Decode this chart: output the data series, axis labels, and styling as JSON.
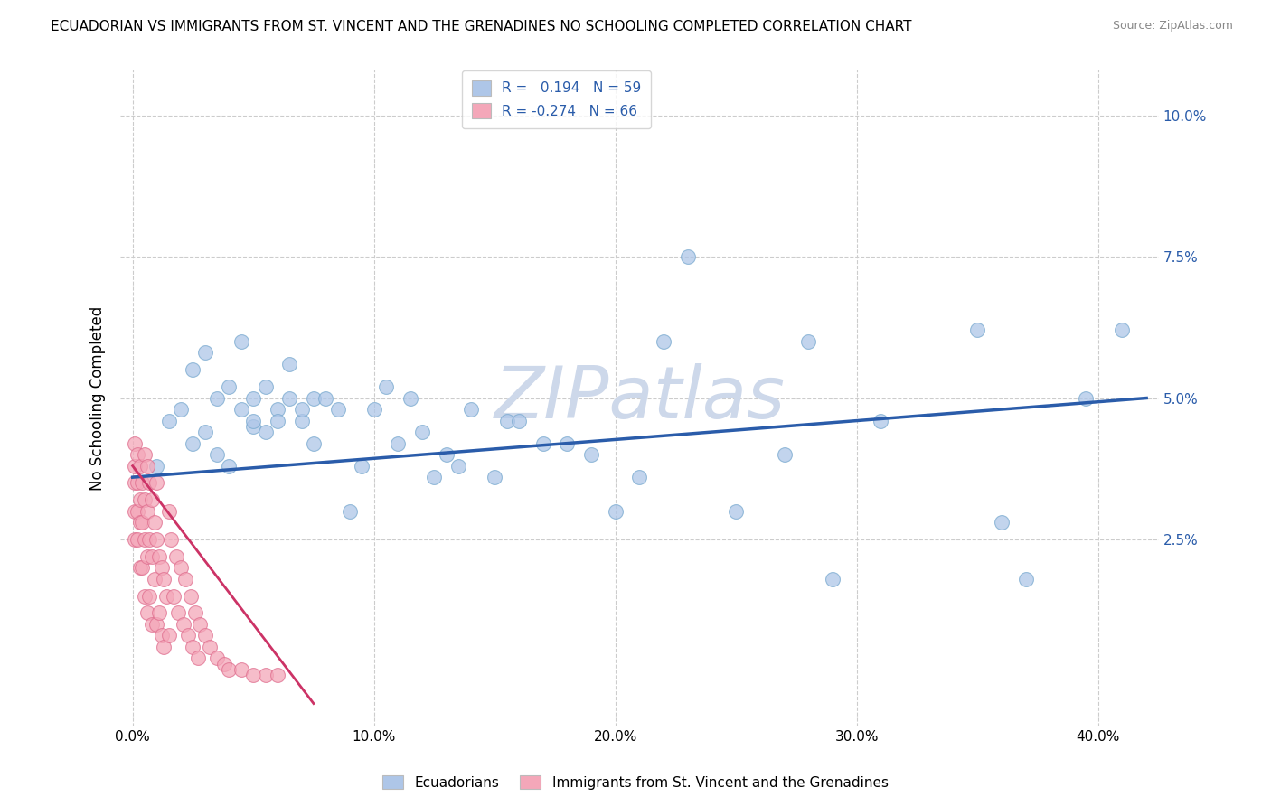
{
  "title": "ECUADORIAN VS IMMIGRANTS FROM ST. VINCENT AND THE GRENADINES NO SCHOOLING COMPLETED CORRELATION CHART",
  "source": "Source: ZipAtlas.com",
  "ylabel": "No Schooling Completed",
  "watermark": "ZIPatlas",
  "legend_blue_r": "0.194",
  "legend_blue_n": "59",
  "legend_pink_r": "-0.274",
  "legend_pink_n": "66",
  "legend_label_blue": "Ecuadorians",
  "legend_label_pink": "Immigrants from St. Vincent and the Grenadines",
  "x_ticks": [
    0.0,
    0.1,
    0.2,
    0.3,
    0.4
  ],
  "x_tick_labels": [
    "0.0%",
    "10.0%",
    "20.0%",
    "30.0%",
    "40.0%"
  ],
  "y_ticks": [
    0.0,
    0.025,
    0.05,
    0.075,
    0.1
  ],
  "y_tick_labels": [
    "",
    "2.5%",
    "5.0%",
    "7.5%",
    "10.0%"
  ],
  "xlim": [
    -0.005,
    0.425
  ],
  "ylim": [
    -0.008,
    0.108
  ],
  "blue_scatter_x": [
    0.01,
    0.015,
    0.02,
    0.025,
    0.025,
    0.03,
    0.03,
    0.035,
    0.035,
    0.04,
    0.04,
    0.045,
    0.045,
    0.05,
    0.05,
    0.05,
    0.055,
    0.055,
    0.06,
    0.06,
    0.065,
    0.065,
    0.07,
    0.07,
    0.075,
    0.075,
    0.08,
    0.085,
    0.09,
    0.095,
    0.1,
    0.105,
    0.11,
    0.115,
    0.12,
    0.125,
    0.13,
    0.135,
    0.14,
    0.15,
    0.155,
    0.16,
    0.17,
    0.18,
    0.19,
    0.2,
    0.21,
    0.22,
    0.23,
    0.25,
    0.27,
    0.29,
    0.31,
    0.35,
    0.36,
    0.37,
    0.395,
    0.41,
    0.28
  ],
  "blue_scatter_y": [
    0.038,
    0.046,
    0.048,
    0.042,
    0.055,
    0.044,
    0.058,
    0.04,
    0.05,
    0.052,
    0.038,
    0.06,
    0.048,
    0.045,
    0.05,
    0.046,
    0.052,
    0.044,
    0.048,
    0.046,
    0.05,
    0.056,
    0.046,
    0.048,
    0.042,
    0.05,
    0.05,
    0.048,
    0.03,
    0.038,
    0.048,
    0.052,
    0.042,
    0.05,
    0.044,
    0.036,
    0.04,
    0.038,
    0.048,
    0.036,
    0.046,
    0.046,
    0.042,
    0.042,
    0.04,
    0.03,
    0.036,
    0.06,
    0.075,
    0.03,
    0.04,
    0.018,
    0.046,
    0.062,
    0.028,
    0.018,
    0.05,
    0.062,
    0.06
  ],
  "pink_scatter_x": [
    0.001,
    0.001,
    0.001,
    0.001,
    0.001,
    0.002,
    0.002,
    0.002,
    0.002,
    0.003,
    0.003,
    0.003,
    0.003,
    0.004,
    0.004,
    0.004,
    0.005,
    0.005,
    0.005,
    0.005,
    0.006,
    0.006,
    0.006,
    0.006,
    0.007,
    0.007,
    0.007,
    0.008,
    0.008,
    0.008,
    0.009,
    0.009,
    0.01,
    0.01,
    0.01,
    0.011,
    0.011,
    0.012,
    0.012,
    0.013,
    0.013,
    0.014,
    0.015,
    0.015,
    0.016,
    0.017,
    0.018,
    0.019,
    0.02,
    0.021,
    0.022,
    0.023,
    0.024,
    0.025,
    0.026,
    0.027,
    0.028,
    0.03,
    0.032,
    0.035,
    0.038,
    0.04,
    0.045,
    0.05,
    0.055,
    0.06
  ],
  "pink_scatter_y": [
    0.042,
    0.038,
    0.035,
    0.03,
    0.025,
    0.04,
    0.035,
    0.03,
    0.025,
    0.038,
    0.032,
    0.028,
    0.02,
    0.035,
    0.028,
    0.02,
    0.04,
    0.032,
    0.025,
    0.015,
    0.038,
    0.03,
    0.022,
    0.012,
    0.035,
    0.025,
    0.015,
    0.032,
    0.022,
    0.01,
    0.028,
    0.018,
    0.035,
    0.025,
    0.01,
    0.022,
    0.012,
    0.02,
    0.008,
    0.018,
    0.006,
    0.015,
    0.03,
    0.008,
    0.025,
    0.015,
    0.022,
    0.012,
    0.02,
    0.01,
    0.018,
    0.008,
    0.015,
    0.006,
    0.012,
    0.004,
    0.01,
    0.008,
    0.006,
    0.004,
    0.003,
    0.002,
    0.002,
    0.001,
    0.001,
    0.001
  ],
  "blue_line_x": [
    0.0,
    0.42
  ],
  "blue_line_y": [
    0.036,
    0.05
  ],
  "pink_line_x": [
    0.0,
    0.075
  ],
  "pink_line_y": [
    0.038,
    -0.004
  ],
  "blue_color": "#aec6e8",
  "blue_edge_color": "#7aaad0",
  "blue_line_color": "#2a5caa",
  "pink_color": "#f4a7b9",
  "pink_edge_color": "#e07090",
  "pink_line_color": "#cc3366",
  "grid_color": "#cccccc",
  "bg_color": "#ffffff",
  "watermark_color": "#cdd8ea",
  "title_fontsize": 11,
  "axis_label_fontsize": 12,
  "tick_fontsize": 11,
  "legend_fontsize": 11,
  "watermark_fontsize": 58
}
